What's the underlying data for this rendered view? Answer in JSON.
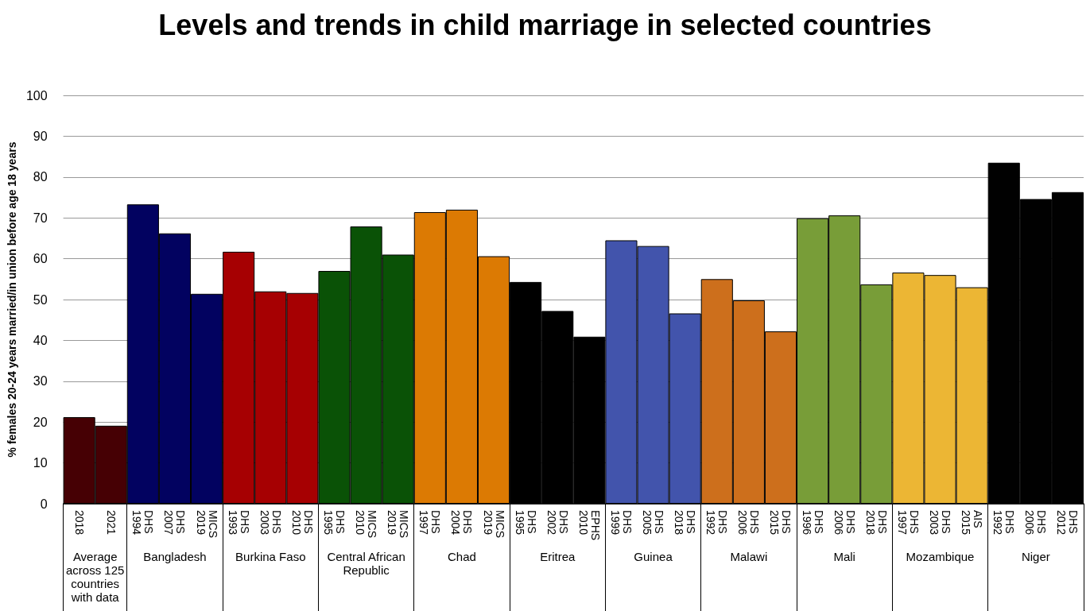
{
  "chart_data": {
    "type": "bar",
    "title": "Levels and trends in child marriage in selected countries",
    "ylabel": "% females 20-24 years married/in union before age 18 years",
    "categories": [
      "2018",
      "2021",
      "DHS\n1994",
      "DHS\n2007",
      "MICS\n2019",
      "DHS\n1993",
      "DHS\n2003",
      "DHS\n2010",
      "DHS\n1995",
      "MICS\n2010",
      "MICS\n2019",
      "DHS\n1997",
      "DHS\n2004",
      "MICS\n2019",
      "DHS\n1995",
      "DHS\n2002",
      "EPHS\n2010",
      "DHS\n1999",
      "DHS\n2005",
      "DHS\n2018",
      "DHS\n1992",
      "DHS\n2006",
      "DHS\n2015",
      "DHS\n1996",
      "DHS\n2006",
      "DHS\n2018",
      "DHS\n1997",
      "DHS\n2003",
      "AIS\n2015",
      "DHS\n1992",
      "DHS\n2006",
      "DHS\n2012"
    ],
    "values": [
      21.2,
      19.1,
      73.3,
      66.2,
      51.4,
      61.7,
      52.0,
      51.6,
      57.0,
      67.9,
      61.0,
      71.4,
      72.0,
      60.6,
      54.3,
      47.2,
      40.9,
      64.5,
      63.1,
      46.6,
      55.0,
      49.8,
      42.2,
      69.9,
      70.6,
      53.7,
      56.6,
      56.0,
      53.0,
      83.5,
      74.6,
      76.3
    ],
    "colors": [
      "#460004",
      "#460004",
      "#020260",
      "#020260",
      "#020260",
      "#a60002",
      "#a60002",
      "#a60002",
      "#0a5206",
      "#0a5206",
      "#0a5206",
      "#dc7a03",
      "#dc7a03",
      "#dc7a03",
      "#000000",
      "#000000",
      "#000000",
      "#4254ac",
      "#4254ac",
      "#4254ac",
      "#cd6f1c",
      "#cd6f1c",
      "#cd6f1c",
      "#789d38",
      "#789d38",
      "#789d38",
      "#ecb634",
      "#ecb634",
      "#ecb634",
      "#010101",
      "#010101",
      "#010101"
    ],
    "annotations": [
      "Average across 125 countries with data",
      "Bangladesh",
      "Burkina Faso",
      "Central African Republic",
      "Chad",
      "Eritrea",
      "Guinea",
      "Malawi",
      "Mali",
      "Mozambique",
      "Niger"
    ],
    "ylim": [
      0,
      100
    ],
    "yticks": [
      0,
      10,
      20,
      30,
      40,
      50,
      60,
      70,
      80,
      90,
      100
    ],
    "grid": "y"
  }
}
